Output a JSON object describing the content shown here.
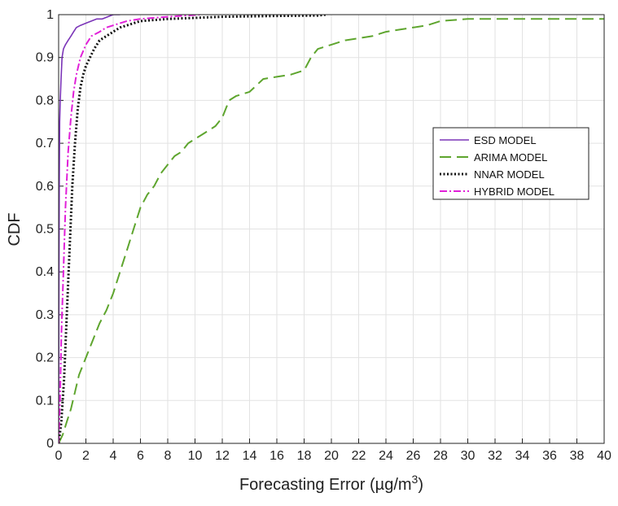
{
  "chart_data": {
    "type": "line",
    "title": "",
    "xlabel": "Forecasting Error (µg/m",
    "xlabel_sup": "3",
    "xlabel_close": ")",
    "ylabel": "CDF",
    "xlim": [
      0,
      40
    ],
    "ylim": [
      0,
      1
    ],
    "grid": true,
    "legend_position": "center-right",
    "x_ticks": [
      "0",
      "2",
      "4",
      "6",
      "8",
      "10",
      "12",
      "14",
      "16",
      "18",
      "20",
      "22",
      "24",
      "26",
      "28",
      "30",
      "32",
      "34",
      "36",
      "38",
      "40"
    ],
    "y_ticks": [
      "0",
      "0.1",
      "0.2",
      "0.3",
      "0.4",
      "0.5",
      "0.6",
      "0.7",
      "0.8",
      "0.9",
      "1"
    ],
    "series": [
      {
        "name": "ESD MODEL",
        "color": "#7b35b8",
        "dash": "solid",
        "points": [
          [
            0,
            0
          ],
          [
            0.02,
            0.3
          ],
          [
            0.05,
            0.6
          ],
          [
            0.08,
            0.75
          ],
          [
            0.12,
            0.8
          ],
          [
            0.18,
            0.85
          ],
          [
            0.25,
            0.9
          ],
          [
            0.35,
            0.92
          ],
          [
            0.5,
            0.93
          ],
          [
            0.7,
            0.94
          ],
          [
            0.9,
            0.95
          ],
          [
            1.1,
            0.96
          ],
          [
            1.3,
            0.97
          ],
          [
            1.6,
            0.975
          ],
          [
            2.0,
            0.98
          ],
          [
            2.4,
            0.985
          ],
          [
            2.8,
            0.99
          ],
          [
            3.2,
            0.99
          ],
          [
            3.6,
            0.995
          ],
          [
            4.0,
            1.0
          ],
          [
            4.5,
            1.0
          ]
        ]
      },
      {
        "name": "ARIMA MODEL",
        "color": "#5ea52e",
        "dash": "long-dash",
        "points": [
          [
            0,
            0
          ],
          [
            0.3,
            0.02
          ],
          [
            0.6,
            0.05
          ],
          [
            0.9,
            0.08
          ],
          [
            1.2,
            0.12
          ],
          [
            1.5,
            0.16
          ],
          [
            2,
            0.2
          ],
          [
            2.5,
            0.24
          ],
          [
            3,
            0.28
          ],
          [
            3.5,
            0.31
          ],
          [
            4,
            0.35
          ],
          [
            4.5,
            0.4
          ],
          [
            5,
            0.45
          ],
          [
            5.5,
            0.5
          ],
          [
            6,
            0.55
          ],
          [
            6.5,
            0.58
          ],
          [
            7,
            0.6
          ],
          [
            7.5,
            0.63
          ],
          [
            8,
            0.65
          ],
          [
            8.5,
            0.67
          ],
          [
            9,
            0.68
          ],
          [
            9.5,
            0.7
          ],
          [
            10,
            0.71
          ],
          [
            10.5,
            0.72
          ],
          [
            11,
            0.73
          ],
          [
            11.5,
            0.74
          ],
          [
            12,
            0.76
          ],
          [
            12.5,
            0.8
          ],
          [
            13,
            0.81
          ],
          [
            14,
            0.82
          ],
          [
            15,
            0.85
          ],
          [
            16,
            0.855
          ],
          [
            17,
            0.86
          ],
          [
            18,
            0.87
          ],
          [
            18.5,
            0.9
          ],
          [
            19,
            0.92
          ],
          [
            20,
            0.93
          ],
          [
            21,
            0.94
          ],
          [
            22,
            0.945
          ],
          [
            23,
            0.95
          ],
          [
            24,
            0.96
          ],
          [
            25,
            0.965
          ],
          [
            26,
            0.97
          ],
          [
            27,
            0.975
          ],
          [
            28,
            0.985
          ],
          [
            30,
            0.99
          ],
          [
            34,
            0.99
          ],
          [
            40,
            0.99
          ]
        ]
      },
      {
        "name": "NNAR MODEL",
        "color": "#111111",
        "dash": "dotted",
        "points": [
          [
            0,
            0
          ],
          [
            0.2,
            0.05
          ],
          [
            0.4,
            0.15
          ],
          [
            0.6,
            0.3
          ],
          [
            0.8,
            0.45
          ],
          [
            1.0,
            0.6
          ],
          [
            1.2,
            0.7
          ],
          [
            1.4,
            0.78
          ],
          [
            1.6,
            0.83
          ],
          [
            1.8,
            0.86
          ],
          [
            2.0,
            0.88
          ],
          [
            2.3,
            0.9
          ],
          [
            2.6,
            0.92
          ],
          [
            3.0,
            0.94
          ],
          [
            3.5,
            0.95
          ],
          [
            4.0,
            0.96
          ],
          [
            4.5,
            0.97
          ],
          [
            5.0,
            0.975
          ],
          [
            6.0,
            0.985
          ],
          [
            8.0,
            0.99
          ],
          [
            12.0,
            0.995
          ],
          [
            16.0,
            0.997
          ],
          [
            19.0,
            0.998
          ],
          [
            19.6,
            1.0
          ]
        ]
      },
      {
        "name": "HYBRID MODEL",
        "color": "#e020d8",
        "dash": "dash-dot",
        "points": [
          [
            0,
            0
          ],
          [
            0.1,
            0.1
          ],
          [
            0.2,
            0.25
          ],
          [
            0.35,
            0.4
          ],
          [
            0.5,
            0.55
          ],
          [
            0.7,
            0.68
          ],
          [
            0.9,
            0.76
          ],
          [
            1.1,
            0.82
          ],
          [
            1.3,
            0.86
          ],
          [
            1.6,
            0.9
          ],
          [
            2.0,
            0.93
          ],
          [
            2.4,
            0.95
          ],
          [
            3.0,
            0.96
          ],
          [
            3.5,
            0.97
          ],
          [
            4.0,
            0.975
          ],
          [
            5.0,
            0.985
          ],
          [
            6.0,
            0.99
          ],
          [
            8.0,
            0.995
          ],
          [
            10.4,
            1.0
          ]
        ]
      }
    ]
  }
}
